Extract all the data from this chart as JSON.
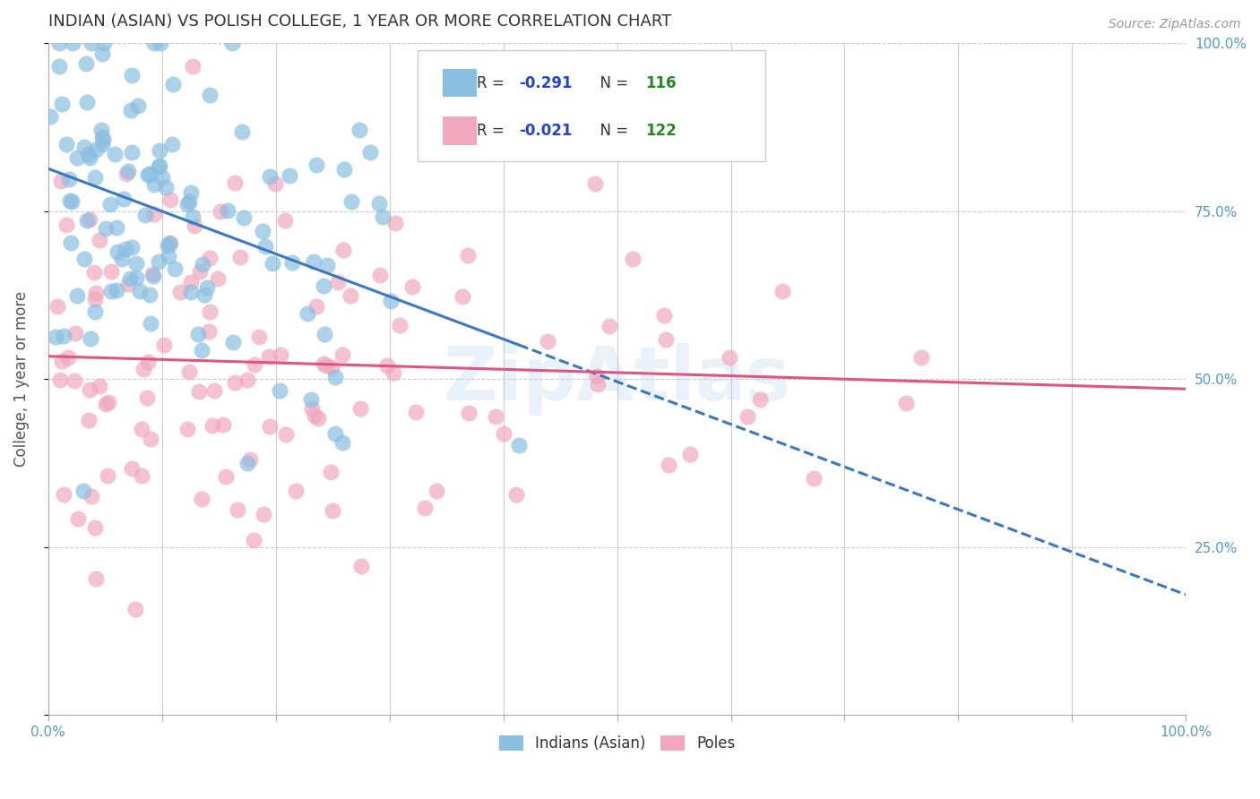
{
  "title": "INDIAN (ASIAN) VS POLISH COLLEGE, 1 YEAR OR MORE CORRELATION CHART",
  "source": "Source: ZipAtlas.com",
  "ylabel": "College, 1 year or more",
  "blue_color": "#89bfe0",
  "pink_color": "#f0a8be",
  "blue_line_color": "#3a78c0",
  "pink_line_color": "#e05580",
  "blue_R": -0.291,
  "blue_N": 116,
  "pink_R": -0.021,
  "pink_N": 122,
  "legend_R_color": "#2244cc",
  "legend_N_color": "#228822",
  "watermark": "ZipAtlas",
  "watermark_color": "#b8d4ea",
  "background_color": "#ffffff",
  "grid_color": "#cccccc",
  "axis_color": "#aaaaaa",
  "title_color": "#333333",
  "tick_color": "#5599cc",
  "seed_blue": 17,
  "seed_pink": 55
}
